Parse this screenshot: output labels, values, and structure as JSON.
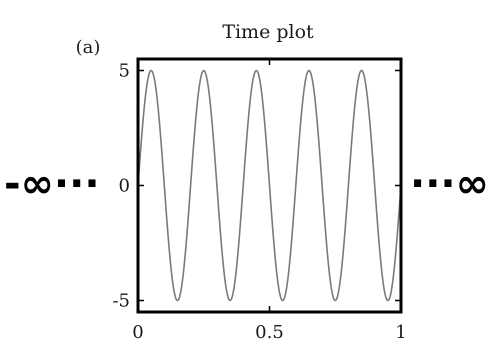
{
  "panel_label": "(a)",
  "left_marker": "-∞···",
  "right_marker": "···∞",
  "chart_data": {
    "type": "line",
    "title": "Time plot",
    "xlabel": "",
    "ylabel": "",
    "xlim": [
      0,
      1
    ],
    "ylim": [
      -5.5,
      5.5
    ],
    "xticks": [
      0,
      0.5,
      1
    ],
    "xtick_labels": [
      "0",
      "0.5",
      "1"
    ],
    "yticks": [
      -5,
      0,
      5
    ],
    "ytick_labels": [
      "-5",
      "0",
      "5"
    ],
    "grid": false,
    "series": [
      {
        "function": "5*sin(2*pi*5*x)",
        "amplitude": 5,
        "frequency": 5,
        "phase": 0,
        "x_start": 0,
        "x_end": 1,
        "color": "#7a7a7a"
      }
    ],
    "frame_color": "#000000"
  }
}
